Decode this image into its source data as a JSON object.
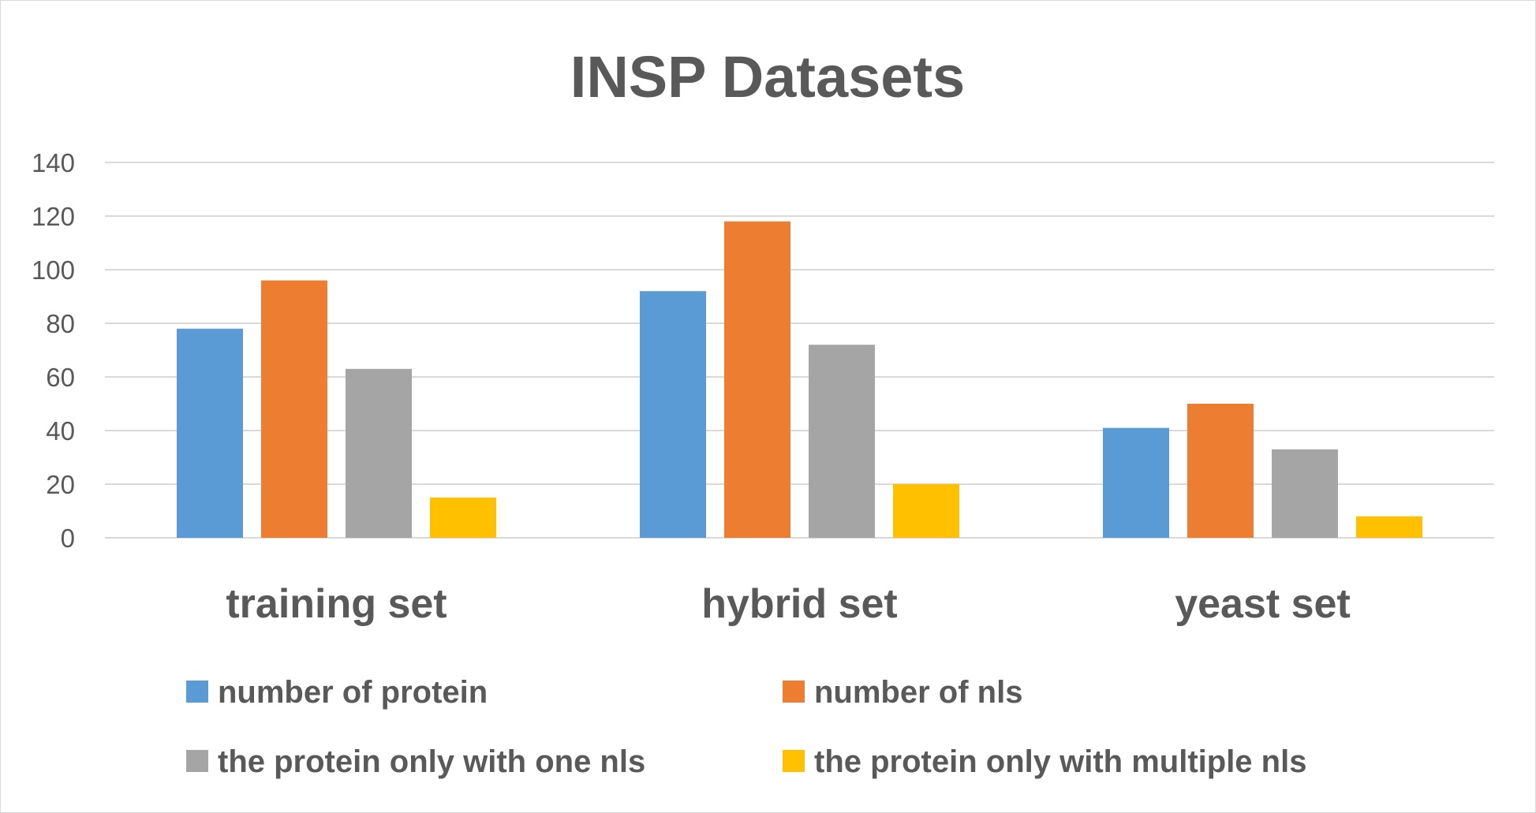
{
  "chart_data": {
    "type": "bar",
    "title": "INSP Datasets",
    "xlabel": "",
    "ylabel": "",
    "categories": [
      "training set",
      "hybrid set",
      "yeast set"
    ],
    "series": [
      {
        "name": "number of protein",
        "values": [
          78,
          92,
          41
        ],
        "color": "#5b9bd5"
      },
      {
        "name": "number of nls",
        "values": [
          96,
          118,
          50
        ],
        "color": "#ed7d31"
      },
      {
        "name": "the protein only with one nls",
        "values": [
          63,
          72,
          33
        ],
        "color": "#a5a5a5"
      },
      {
        "name": "the protein only with multiple nls",
        "values": [
          15,
          20,
          8
        ],
        "color": "#ffc000"
      }
    ],
    "ylim": [
      0,
      140
    ],
    "yticks": [
      0,
      20,
      40,
      60,
      80,
      100,
      120,
      140
    ],
    "grid": true,
    "legend_position": "bottom"
  }
}
